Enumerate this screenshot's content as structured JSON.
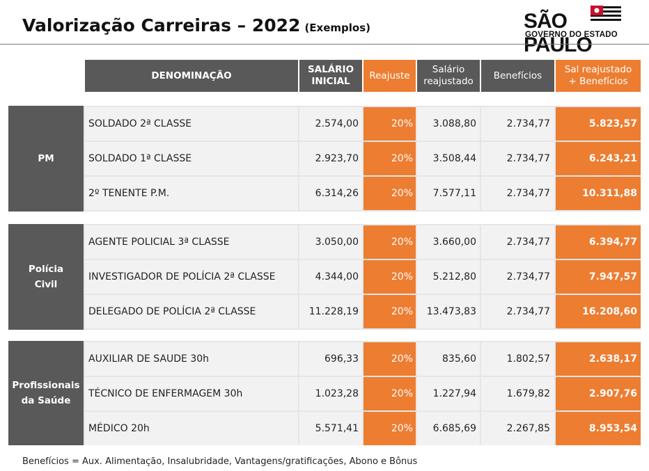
{
  "header": {
    "title": "Valorização Carreiras – 2022",
    "subtitle": "(Exemplos)",
    "logo_line1": "SÃO PAULO",
    "logo_line2": "GOVERNO DO ESTADO"
  },
  "table": {
    "columns": {
      "name": "DENOMINAÇÃO",
      "salary_1": "SALÁRIO",
      "salary_2": "INICIAL",
      "raise": "Reajuste",
      "adjusted_1": "Salário",
      "adjusted_2": "reajustado",
      "benefits": "Benefícios",
      "total_1": "Sal reajustado",
      "total_2": "+ Benefícios"
    },
    "groups": [
      {
        "label_1": "PM",
        "label_2": "",
        "rows": [
          {
            "name": "SOLDADO  2ª CLASSE",
            "salary": "2.574,00",
            "raise": "20%",
            "adjusted": "3.088,80",
            "benefits": "2.734,77",
            "total": "5.823,57"
          },
          {
            "name": "SOLDADO  1ª CLASSE",
            "salary": "2.923,70",
            "raise": "20%",
            "adjusted": "3.508,44",
            "benefits": "2.734,77",
            "total": "6.243,21"
          },
          {
            "name": "2º TENENTE P.M.",
            "salary": "6.314,26",
            "raise": "20%",
            "adjusted": "7.577,11",
            "benefits": "2.734,77",
            "total": "10.311,88"
          }
        ]
      },
      {
        "label_1": "Polícia",
        "label_2": "Civil",
        "rows": [
          {
            "name": "AGENTE POLICIAL  3ª CLASSE",
            "salary": "3.050,00",
            "raise": "20%",
            "adjusted": "3.660,00",
            "benefits": "2.734,77",
            "total": "6.394,77"
          },
          {
            "name": "INVESTIGADOR DE POLÍCIA 2ª CLASSE",
            "salary": "4.344,00",
            "raise": "20%",
            "adjusted": "5.212,80",
            "benefits": "2.734,77",
            "total": "7.947,57"
          },
          {
            "name": "DELEGADO DE POLÍCIA 2ª CLASSE",
            "salary": "11.228,19",
            "raise": "20%",
            "adjusted": "13.473,83",
            "benefits": "2.734,77",
            "total": "16.208,60"
          }
        ]
      },
      {
        "label_1": "Profissionais",
        "label_2": "da Saúde",
        "rows": [
          {
            "name": "AUXILIAR DE SAUDE  30h",
            "salary": "696,33",
            "raise": "20%",
            "adjusted": "835,60",
            "benefits": "1.802,57",
            "total": "2.638,17"
          },
          {
            "name": "TÉCNICO DE ENFERMAGEM  30h",
            "salary": "1.023,28",
            "raise": "20%",
            "adjusted": "1.227,94",
            "benefits": "1.679,82",
            "total": "2.907,76"
          },
          {
            "name": "MÉDICO  20h",
            "salary": "5.571,41",
            "raise": "20%",
            "adjusted": "6.685,69",
            "benefits": "2.267,85",
            "total": "8.953,54"
          }
        ]
      }
    ]
  },
  "footer": {
    "note": "Benefícios = Aux. Alimentação, Insalubridade, Vantagens/gratificações, Abono e  Bônus"
  },
  "colors": {
    "accent_orange": "#ed7d31",
    "header_gray": "#595959",
    "row_gray": "#f2f2f2"
  }
}
